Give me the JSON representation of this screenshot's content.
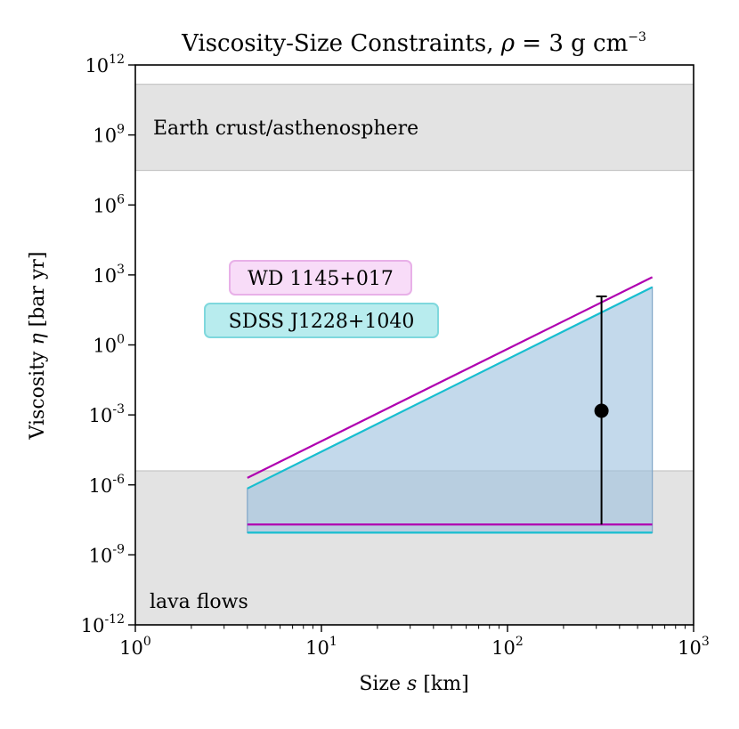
{
  "chart_data": {
    "type": "line",
    "title": "Viscosity-Size Constraints, ",
    "title_math": {
      "symbol": "ρ",
      "eq": " = 3 g cm",
      "exp": "−3"
    },
    "xlabel": {
      "text": "Size ",
      "symbol": "s",
      "unit": " [km]"
    },
    "ylabel": {
      "text": "Viscosity ",
      "symbol": "η",
      "unit": " [bar yr]"
    },
    "x_scale": "log",
    "y_scale": "log",
    "xlim": [
      1,
      1000
    ],
    "ylim": [
      1e-12,
      1000000000000.0
    ],
    "x_ticks": [
      {
        "value": 1,
        "base": "10",
        "exp": "0"
      },
      {
        "value": 10,
        "base": "10",
        "exp": "1"
      },
      {
        "value": 100,
        "base": "10",
        "exp": "2"
      },
      {
        "value": 1000,
        "base": "10",
        "exp": "3"
      }
    ],
    "y_ticks": [
      {
        "value": 1e-12,
        "base": "10",
        "exp": "-12"
      },
      {
        "value": 1e-09,
        "base": "10",
        "exp": "-9"
      },
      {
        "value": 1e-06,
        "base": "10",
        "exp": "-6"
      },
      {
        "value": 0.001,
        "base": "10",
        "exp": "-3"
      },
      {
        "value": 1,
        "base": "10",
        "exp": "0"
      },
      {
        "value": 1000.0,
        "base": "10",
        "exp": "3"
      },
      {
        "value": 1000000.0,
        "base": "10",
        "exp": "6"
      },
      {
        "value": 1000000000.0,
        "base": "10",
        "exp": "9"
      },
      {
        "value": 1000000000000.0,
        "base": "10",
        "exp": "12"
      }
    ],
    "bands": [
      {
        "label": "Earth crust/asthenosphere",
        "y_range": [
          30000000.0,
          150000000000.0
        ],
        "color": "#e3e3e3"
      },
      {
        "label": "lava flows",
        "y_range": [
          1e-12,
          4e-06
        ],
        "color": "#e3e3e3"
      }
    ],
    "series": [
      {
        "name": "WD 1145+017",
        "color": "#b000b0",
        "box_fill": "#f8dcf8",
        "box_edge": "#e8b0e8",
        "upper": {
          "x": [
            4,
            600
          ],
          "y": [
            2e-06,
            800
          ]
        },
        "lower": {
          "x": [
            4,
            600
          ],
          "y": [
            2e-08,
            2e-08
          ]
        }
      },
      {
        "name": "SDSS J1228+1040",
        "color": "#17becf",
        "box_fill": "#b8ecee",
        "box_edge": "#7fd8dd",
        "upper": {
          "x": [
            4,
            600
          ],
          "y": [
            7e-07,
            300
          ]
        },
        "lower": {
          "x": [
            4,
            600
          ],
          "y": [
            9e-09,
            9e-09
          ]
        }
      }
    ],
    "fill": {
      "x": [
        4,
        600
      ],
      "upper": [
        7e-07,
        300
      ],
      "lower": [
        9e-09,
        9e-09
      ],
      "color": "#9bbfde"
    },
    "point": {
      "x": 320,
      "y": 0.0015,
      "y_err_high": 120,
      "y_err_low": 2e-08,
      "color": "#000000"
    },
    "legend_placement": "upper-left",
    "grid": false
  }
}
